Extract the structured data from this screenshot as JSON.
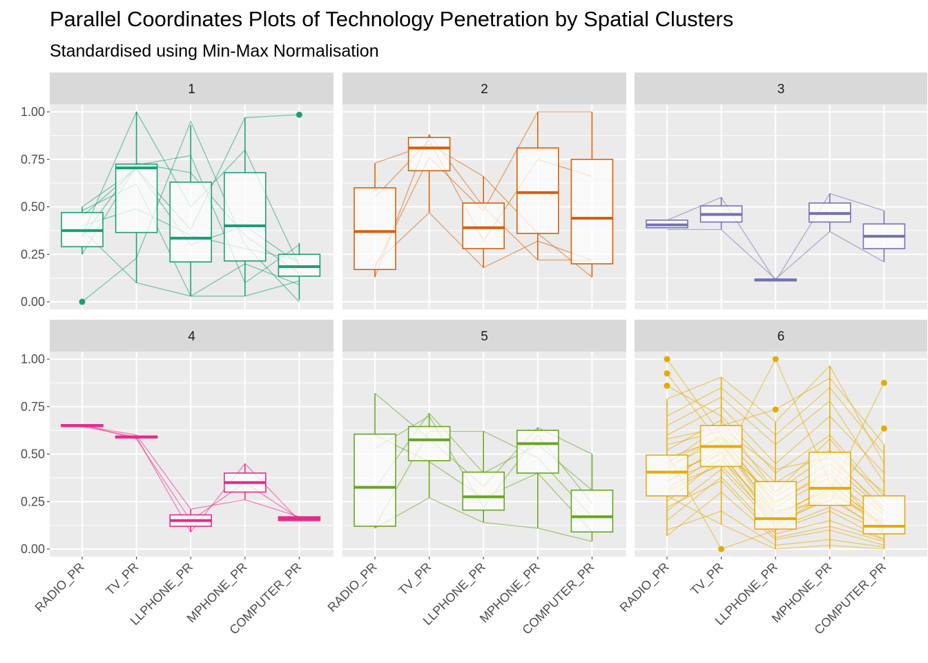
{
  "title": "Parallel Coordinates Plots of Technology Penetration by Spatial Clusters",
  "subtitle": "Standardised using Min-Max Normalisation",
  "chart_data": {
    "type": "parallel-coordinates-boxplot",
    "facets_layout": "2 rows x 3 columns",
    "axes": [
      "RADIO_PR",
      "TV_PR",
      "LLPHONE_PR",
      "MPHONE_PR",
      "COMPUTER_PR"
    ],
    "y_ticks": [
      "0.00",
      "0.25",
      "0.50",
      "0.75",
      "1.00"
    ],
    "ylim": [
      -0.04,
      1.04
    ],
    "grid": true,
    "panel_background": "#ebebeb",
    "strip_background": "#d9d9d9",
    "facets": [
      {
        "label": "1",
        "color": "#1b9e77",
        "boxes": [
          {
            "q1": 0.29,
            "med": 0.375,
            "q3": 0.47,
            "lo": 0.25,
            "hi": 0.5
          },
          {
            "q1": 0.365,
            "med": 0.705,
            "q3": 0.725,
            "lo": 0.1,
            "hi": 1.0
          },
          {
            "q1": 0.21,
            "med": 0.335,
            "q3": 0.63,
            "lo": 0.03,
            "hi": 0.93
          },
          {
            "q1": 0.215,
            "med": 0.4,
            "q3": 0.68,
            "lo": 0.03,
            "hi": 0.97
          },
          {
            "q1": 0.135,
            "med": 0.185,
            "q3": 0.25,
            "lo": 0.01,
            "hi": 0.31
          }
        ],
        "outliers": [
          [
            0,
            0.0
          ],
          [
            4,
            0.985
          ]
        ],
        "lines": [
          [
            0.0,
            0.23,
            0.95,
            0.3,
            0.0
          ],
          [
            0.5,
            0.7,
            0.38,
            0.97,
            0.985
          ],
          [
            0.45,
            0.7,
            0.3,
            0.4,
            0.2
          ],
          [
            0.35,
            1.0,
            0.5,
            0.8,
            0.19
          ],
          [
            0.34,
            0.73,
            0.68,
            0.35,
            0.15
          ],
          [
            0.4,
            0.49,
            0.35,
            0.28,
            0.22
          ],
          [
            0.38,
            0.1,
            0.03,
            0.03,
            0.11
          ],
          [
            0.25,
            0.72,
            0.77,
            0.1,
            0.3
          ],
          [
            0.48,
            0.62,
            0.03,
            0.2,
            0.09
          ]
        ]
      },
      {
        "label": "2",
        "color": "#d95f02",
        "boxes": [
          {
            "q1": 0.17,
            "med": 0.37,
            "q3": 0.6,
            "lo": 0.13,
            "hi": 0.73
          },
          {
            "q1": 0.69,
            "med": 0.81,
            "q3": 0.865,
            "lo": 0.47,
            "hi": 0.88
          },
          {
            "q1": 0.28,
            "med": 0.39,
            "q3": 0.52,
            "lo": 0.18,
            "hi": 0.66
          },
          {
            "q1": 0.36,
            "med": 0.575,
            "q3": 0.81,
            "lo": 0.22,
            "hi": 1.0
          },
          {
            "q1": 0.2,
            "med": 0.44,
            "q3": 0.75,
            "lo": 0.13,
            "hi": 1.0
          }
        ],
        "outliers": [],
        "lines": [
          [
            0.13,
            0.88,
            0.5,
            0.22,
            0.22
          ],
          [
            0.55,
            0.85,
            0.32,
            0.75,
            0.66
          ],
          [
            0.73,
            0.83,
            0.66,
            0.36,
            0.13
          ],
          [
            0.2,
            0.47,
            0.18,
            0.32,
            0.22
          ],
          [
            0.18,
            0.76,
            0.48,
            1.0,
            1.0
          ]
        ]
      },
      {
        "label": "3",
        "color": "#7570b3",
        "boxes": [
          {
            "q1": 0.39,
            "med": 0.405,
            "q3": 0.43,
            "lo": 0.39,
            "hi": 0.43
          },
          {
            "q1": 0.42,
            "med": 0.46,
            "q3": 0.505,
            "lo": 0.38,
            "hi": 0.55
          },
          {
            "q1": 0.11,
            "med": 0.115,
            "q3": 0.12,
            "lo": 0.11,
            "hi": 0.12
          },
          {
            "q1": 0.42,
            "med": 0.465,
            "q3": 0.52,
            "lo": 0.37,
            "hi": 0.57
          },
          {
            "q1": 0.28,
            "med": 0.345,
            "q3": 0.41,
            "lo": 0.21,
            "hi": 0.48
          }
        ],
        "outliers": [],
        "lines": [
          [
            0.43,
            0.55,
            0.11,
            0.57,
            0.48
          ],
          [
            0.38,
            0.38,
            0.12,
            0.37,
            0.21
          ]
        ]
      },
      {
        "label": "4",
        "color": "#e7298a",
        "boxes": [
          {
            "q1": 0.645,
            "med": 0.65,
            "q3": 0.655,
            "lo": 0.64,
            "hi": 0.655
          },
          {
            "q1": 0.585,
            "med": 0.59,
            "q3": 0.595,
            "lo": 0.58,
            "hi": 0.6
          },
          {
            "q1": 0.12,
            "med": 0.15,
            "q3": 0.18,
            "lo": 0.09,
            "hi": 0.21
          },
          {
            "q1": 0.3,
            "med": 0.35,
            "q3": 0.4,
            "lo": 0.26,
            "hi": 0.45
          },
          {
            "q1": 0.15,
            "med": 0.16,
            "q3": 0.17,
            "lo": 0.15,
            "hi": 0.17
          }
        ],
        "outliers": [],
        "lines": [
          [
            0.65,
            0.6,
            0.21,
            0.26,
            0.17
          ],
          [
            0.645,
            0.59,
            0.09,
            0.45,
            0.15
          ],
          [
            0.655,
            0.58,
            0.15,
            0.35,
            0.16
          ]
        ]
      },
      {
        "label": "5",
        "color": "#66a61e",
        "boxes": [
          {
            "q1": 0.12,
            "med": 0.325,
            "q3": 0.605,
            "lo": 0.11,
            "hi": 0.82
          },
          {
            "q1": 0.465,
            "med": 0.575,
            "q3": 0.645,
            "lo": 0.27,
            "hi": 0.715
          },
          {
            "q1": 0.205,
            "med": 0.275,
            "q3": 0.405,
            "lo": 0.14,
            "hi": 0.62
          },
          {
            "q1": 0.4,
            "med": 0.555,
            "q3": 0.625,
            "lo": 0.11,
            "hi": 0.64
          },
          {
            "q1": 0.09,
            "med": 0.17,
            "q3": 0.31,
            "lo": 0.04,
            "hi": 0.5
          }
        ],
        "outliers": [],
        "lines": [
          [
            0.82,
            0.58,
            0.33,
            0.64,
            0.5
          ],
          [
            0.11,
            0.27,
            0.14,
            0.11,
            0.04
          ],
          [
            0.53,
            0.7,
            0.22,
            0.6,
            0.24
          ],
          [
            0.12,
            0.62,
            0.62,
            0.48,
            0.17
          ],
          [
            0.32,
            0.715,
            0.4,
            0.55,
            0.31
          ],
          [
            0.6,
            0.46,
            0.27,
            0.4,
            0.09
          ]
        ]
      },
      {
        "label": "6",
        "color": "#e6ab02",
        "boxes": [
          {
            "q1": 0.28,
            "med": 0.405,
            "q3": 0.495,
            "lo": 0.07,
            "hi": 0.79
          },
          {
            "q1": 0.435,
            "med": 0.54,
            "q3": 0.65,
            "lo": 0.13,
            "hi": 0.905
          },
          {
            "q1": 0.105,
            "med": 0.16,
            "q3": 0.355,
            "lo": 0.0,
            "hi": 0.67
          },
          {
            "q1": 0.23,
            "med": 0.32,
            "q3": 0.51,
            "lo": 0.0,
            "hi": 0.965
          },
          {
            "q1": 0.08,
            "med": 0.12,
            "q3": 0.28,
            "lo": 0.0,
            "hi": 0.55
          }
        ],
        "outliers": [
          [
            0,
            1.0
          ],
          [
            0,
            0.925
          ],
          [
            0,
            0.86
          ],
          [
            1,
            0.0
          ],
          [
            2,
            1.0
          ],
          [
            2,
            0.735
          ],
          [
            4,
            0.875
          ],
          [
            4,
            0.635
          ]
        ],
        "lines": [
          [
            1.0,
            0.6,
            0.3,
            0.5,
            0.2
          ],
          [
            0.925,
            0.55,
            0.25,
            0.4,
            0.1
          ],
          [
            0.86,
            0.7,
            0.4,
            0.6,
            0.28
          ],
          [
            0.5,
            0.0,
            0.1,
            0.2,
            0.05
          ],
          [
            0.3,
            0.45,
            1.0,
            0.35,
            0.12
          ],
          [
            0.45,
            0.65,
            0.735,
            0.9,
            0.55
          ],
          [
            0.4,
            0.5,
            0.15,
            0.3,
            0.875
          ],
          [
            0.35,
            0.55,
            0.2,
            0.25,
            0.635
          ],
          [
            0.07,
            0.3,
            0.05,
            0.1,
            0.02
          ],
          [
            0.79,
            0.905,
            0.67,
            0.965,
            0.45
          ],
          [
            0.2,
            0.42,
            0.12,
            0.28,
            0.08
          ],
          [
            0.55,
            0.62,
            0.35,
            0.52,
            0.3
          ],
          [
            0.28,
            0.13,
            0.0,
            0.02,
            0.0
          ],
          [
            0.6,
            0.75,
            0.45,
            0.7,
            0.4
          ],
          [
            0.15,
            0.38,
            0.08,
            0.15,
            0.05
          ],
          [
            0.48,
            0.58,
            0.18,
            0.32,
            0.12
          ],
          [
            0.38,
            0.52,
            0.28,
            0.45,
            0.2
          ],
          [
            0.25,
            0.48,
            0.11,
            0.22,
            0.09
          ],
          [
            0.65,
            0.8,
            0.55,
            0.78,
            0.35
          ],
          [
            0.1,
            0.2,
            0.02,
            0.05,
            0.01
          ],
          [
            0.42,
            0.6,
            0.22,
            0.38,
            0.15
          ],
          [
            0.52,
            0.68,
            0.3,
            0.58,
            0.25
          ],
          [
            0.33,
            0.44,
            0.14,
            0.26,
            0.1
          ],
          [
            0.7,
            0.85,
            0.6,
            0.85,
            0.5
          ],
          [
            0.44,
            0.56,
            0.16,
            0.34,
            0.13
          ],
          [
            0.36,
            0.47,
            0.19,
            0.31,
            0.11
          ],
          [
            0.58,
            0.64,
            0.42,
            0.48,
            0.22
          ],
          [
            0.22,
            0.36,
            0.06,
            0.12,
            0.04
          ],
          [
            0.46,
            0.59,
            0.24,
            0.42,
            0.18
          ],
          [
            0.31,
            0.51,
            0.13,
            0.29,
            0.14
          ]
        ]
      }
    ]
  }
}
